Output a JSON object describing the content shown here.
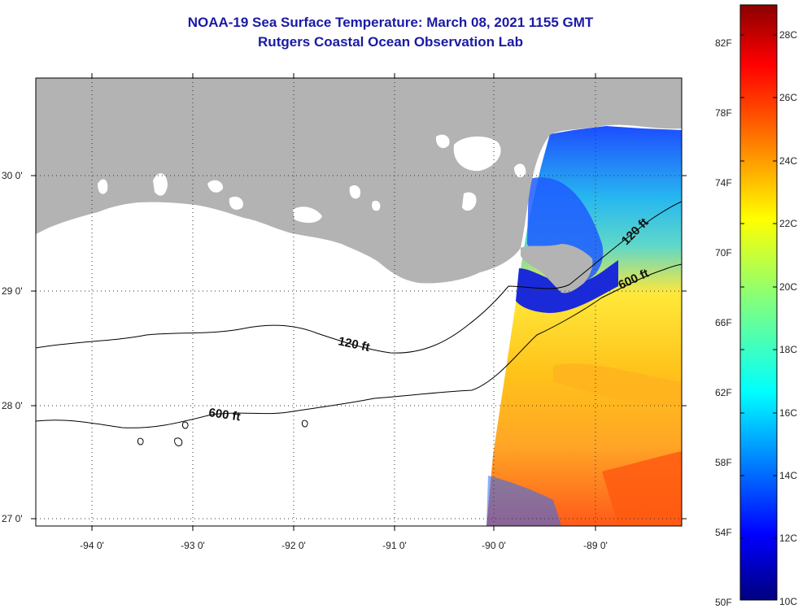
{
  "title": {
    "line1": "NOAA-19 Sea Surface Temperature:  March 08, 2021 1155 GMT",
    "line2": "Rutgers Coastal Ocean Observation Lab"
  },
  "map": {
    "lat_labels": [
      "30 0'",
      "29 0'",
      "28 0'",
      "27 0'"
    ],
    "lon_labels": [
      "-94 0'",
      "-93 0'",
      "-92 0'",
      "-91 0'",
      "-90 0'",
      "-89 0'"
    ],
    "contour_labels": [
      "120 ft",
      "600 ft",
      "120 ft",
      "600 ft"
    ],
    "colors": {
      "land": "#b3b3b3",
      "ocean_nodata": "#ffffff",
      "contour": "#000000"
    }
  },
  "colorbar": {
    "fahrenheit_labels": [
      "82F",
      "78F",
      "74F",
      "70F",
      "66F",
      "62F",
      "58F",
      "54F",
      "50F"
    ],
    "celsius_labels": [
      "28C",
      "26C",
      "24C",
      "22C",
      "20C",
      "18C",
      "16C",
      "14C",
      "12C",
      "10C"
    ],
    "range_celsius": [
      10,
      29.5
    ]
  }
}
